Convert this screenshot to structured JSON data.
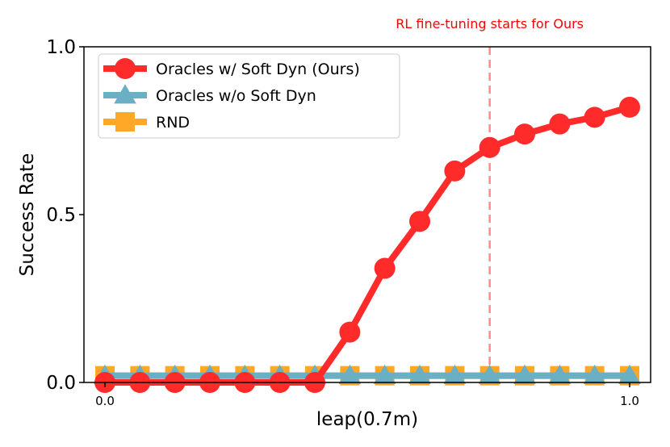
{
  "chart_data": {
    "type": "line",
    "title": "",
    "xlabel": "leap(0.7m)",
    "ylabel": "Success Rate",
    "xlim": [
      -0.04,
      1.04
    ],
    "ylim": [
      0.0,
      1.0
    ],
    "x_ticks": [
      0.0,
      1.0
    ],
    "x_tick_labels": [
      "0.0",
      "1.0"
    ],
    "y_ticks": [
      0.0,
      0.5,
      1.0
    ],
    "y_tick_labels": [
      "0.0",
      "0.5",
      "1.0"
    ],
    "grid": false,
    "legend_position": "top-left",
    "x": [
      0.0,
      0.0667,
      0.1333,
      0.2,
      0.2667,
      0.3333,
      0.4,
      0.4667,
      0.5333,
      0.6,
      0.6667,
      0.7333,
      0.8,
      0.8667,
      0.9333,
      1.0
    ],
    "series": [
      {
        "name": "Oracles w/ Soft Dyn (Ours)",
        "color": "#ff2b2b",
        "marker": "circle",
        "values": [
          0.0,
          0.0,
          0.0,
          0.0,
          0.0,
          0.0,
          0.0,
          0.15,
          0.34,
          0.48,
          0.63,
          0.7,
          0.74,
          0.77,
          0.79,
          0.82
        ]
      },
      {
        "name": "Oracles w/o Soft Dyn",
        "color": "#6aafc3",
        "marker": "triangle",
        "values": [
          0.02,
          0.02,
          0.02,
          0.02,
          0.02,
          0.02,
          0.02,
          0.02,
          0.02,
          0.02,
          0.02,
          0.02,
          0.02,
          0.02,
          0.02,
          0.02
        ]
      },
      {
        "name": "RND",
        "color": "#ffa726",
        "marker": "square",
        "values": [
          0.02,
          0.02,
          0.02,
          0.02,
          0.02,
          0.02,
          0.02,
          0.02,
          0.02,
          0.02,
          0.02,
          0.02,
          0.02,
          0.02,
          0.02,
          0.02
        ]
      }
    ],
    "annotations": [
      {
        "text": "RL fine-tuning starts for Ours",
        "x": 0.7333,
        "color": "#ff0000",
        "line_color": "#ff8a8a",
        "line_style": "dashed"
      }
    ]
  }
}
